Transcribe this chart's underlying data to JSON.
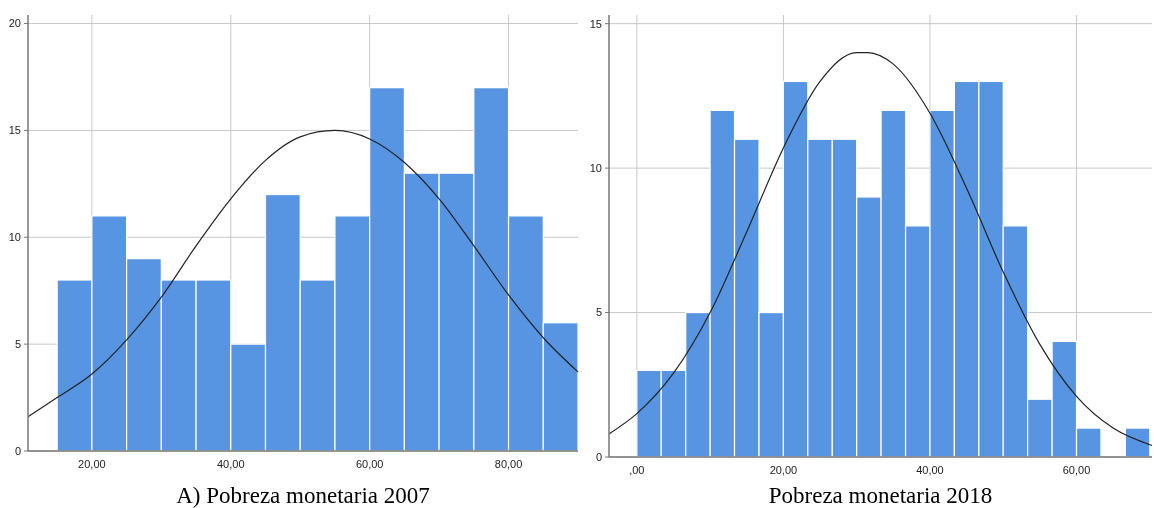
{
  "chart_data": [
    {
      "type": "histogram",
      "xlabel": "A) Pobreza monetaria 2007",
      "bins": [
        15,
        20,
        25,
        30,
        35,
        40,
        45,
        50,
        55,
        60,
        65,
        70,
        75,
        80,
        85,
        90
      ],
      "values": [
        8,
        11,
        9,
        8,
        8,
        5,
        12,
        8,
        11,
        17,
        13,
        13,
        17,
        11,
        6
      ],
      "color": "#5795e3",
      "series": [
        {
          "type": "line",
          "color": "#222222",
          "x": [
            10.8,
            15,
            20,
            25,
            30,
            35,
            40,
            45,
            50,
            55,
            60,
            65,
            70,
            75,
            80,
            85,
            90
          ],
          "values": [
            1.6,
            2.5,
            3.6,
            5.2,
            7.2,
            9.6,
            11.8,
            13.6,
            14.7,
            15,
            14.6,
            13.5,
            11.8,
            9.6,
            7.3,
            5.3,
            3.7
          ]
        }
      ],
      "xlim": [
        10.8,
        90
      ],
      "ylim": [
        0,
        20.4
      ],
      "xticks": [
        {
          "value": 20,
          "label": "20,00"
        },
        {
          "value": 40,
          "label": "40,00"
        },
        {
          "value": 60,
          "label": "60,00"
        },
        {
          "value": 80,
          "label": "80,00"
        }
      ],
      "yticks": [
        0,
        5,
        10,
        15,
        20
      ],
      "grid": true,
      "marker": "none"
    },
    {
      "type": "histogram",
      "xlabel": "Pobreza monetaria 2018",
      "bins": [
        0,
        3.33,
        6.67,
        10,
        13.33,
        16.67,
        20,
        23.33,
        26.67,
        30,
        33.33,
        36.67,
        40,
        43.33,
        46.67,
        50,
        53.33,
        56.67,
        60,
        63.33,
        66.67,
        70
      ],
      "values": [
        3,
        3,
        5,
        12,
        11,
        5,
        13,
        11,
        11,
        9,
        12,
        8,
        12,
        13,
        13,
        8,
        2,
        4,
        1,
        0,
        1
      ],
      "color": "#5795e3",
      "series": [
        {
          "type": "line",
          "color": "#222222",
          "x": [
            -3.8,
            0,
            5,
            10,
            15,
            20,
            25,
            30,
            31.5,
            35,
            40,
            45,
            50,
            55,
            60,
            65,
            70.3
          ],
          "values": [
            0.8,
            1.5,
            2.9,
            5,
            7.8,
            10.7,
            13,
            14,
            14,
            13.6,
            11.9,
            9.3,
            6.4,
            3.9,
            2.1,
            1,
            0.4
          ]
        }
      ],
      "xlim": [
        -3.8,
        70.3
      ],
      "ylim": [
        0,
        15.3
      ],
      "xticks": [
        {
          "value": 0,
          "label": ",00"
        },
        {
          "value": 20,
          "label": "20,00"
        },
        {
          "value": 40,
          "label": "40,00"
        },
        {
          "value": 60,
          "label": "60,00"
        }
      ],
      "yticks": [
        0,
        5,
        10,
        15
      ],
      "grid": true,
      "marker": "none"
    }
  ]
}
